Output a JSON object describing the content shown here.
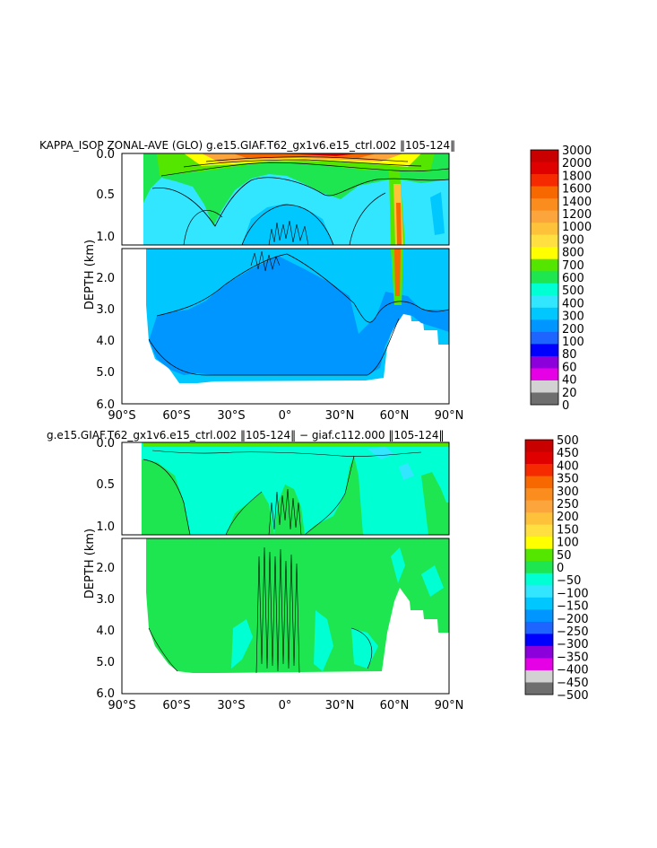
{
  "chart_data": [
    {
      "type": "heatmap",
      "title": "KAPPA_ISOP  ZONAL-AVE (GLO) g.e15.GIAF.T62_gx1v6.e15_ctrl.002 ‖105-124‖",
      "xlabel": "",
      "ylabel": "DEPTH (km)",
      "x_ticks": [
        "90°S",
        "60°S",
        "30°S",
        "0°",
        "30°N",
        "60°N",
        "90°N"
      ],
      "y_ticks_upper": [
        "0.0",
        "0.5",
        "1.0"
      ],
      "y_ticks_lower": [
        "2.0",
        "3.0",
        "4.0",
        "5.0",
        "6.0"
      ],
      "xlim": [
        -90,
        90
      ],
      "ylim": [
        6.0,
        0.0
      ],
      "colorbar": {
        "labels": [
          "3000",
          "2000",
          "1800",
          "1600",
          "1400",
          "1200",
          "1000",
          "900",
          "800",
          "700",
          "600",
          "500",
          "400",
          "300",
          "200",
          "100",
          "80",
          "60",
          "40",
          "20",
          "0"
        ],
        "colors": [
          "#c80000",
          "#e00000",
          "#f52a00",
          "#f86800",
          "#fb8c1e",
          "#fca53c",
          "#fdc23a",
          "#ffe040",
          "#ffff00",
          "#55e600",
          "#1ee650",
          "#00ffd2",
          "#32e6ff",
          "#00c8ff",
          "#0096ff",
          "#1e64ff",
          "#0000ff",
          "#8c00dc",
          "#e600e6",
          "#d2d2d2",
          "#6e6e6e"
        ]
      },
      "dominant_levels": {
        "surface_band_max": "3000",
        "upper_ocean": "600-800",
        "deep_ocean": "200-400"
      }
    },
    {
      "type": "heatmap",
      "title": "g.e15.GIAF.T62_gx1v6.e15_ctrl.002 ‖105-124‖ − giaf.c112.000 ‖105-124‖",
      "xlabel": "",
      "ylabel": "DEPTH (km)",
      "x_ticks": [
        "90°S",
        "60°S",
        "30°S",
        "0°",
        "30°N",
        "60°N",
        "90°N"
      ],
      "y_ticks_upper": [
        "0.0",
        "0.5",
        "1.0"
      ],
      "y_ticks_lower": [
        "2.0",
        "3.0",
        "4.0",
        "5.0",
        "6.0"
      ],
      "xlim": [
        -90,
        90
      ],
      "ylim": [
        6.0,
        0.0
      ],
      "colorbar": {
        "labels": [
          "500",
          "450",
          "400",
          "350",
          "300",
          "250",
          "200",
          "150",
          "100",
          "50",
          "0",
          "−50",
          "−100",
          "−150",
          "−200",
          "−250",
          "−300",
          "−350",
          "−400",
          "−450",
          "−500"
        ],
        "colors": [
          "#c80000",
          "#e00000",
          "#f52a00",
          "#f86800",
          "#fb8c1e",
          "#fca53c",
          "#fdc23a",
          "#ffe040",
          "#ffff00",
          "#55e600",
          "#1ee650",
          "#00ffd2",
          "#32e6ff",
          "#00c8ff",
          "#0096ff",
          "#1e64ff",
          "#0000ff",
          "#8c00dc",
          "#e600e6",
          "#d2d2d2",
          "#6e6e6e"
        ]
      },
      "dominant_levels": {
        "most_of_domain": "0 to 50",
        "upper_ocean_north": "0 to −50"
      }
    }
  ]
}
